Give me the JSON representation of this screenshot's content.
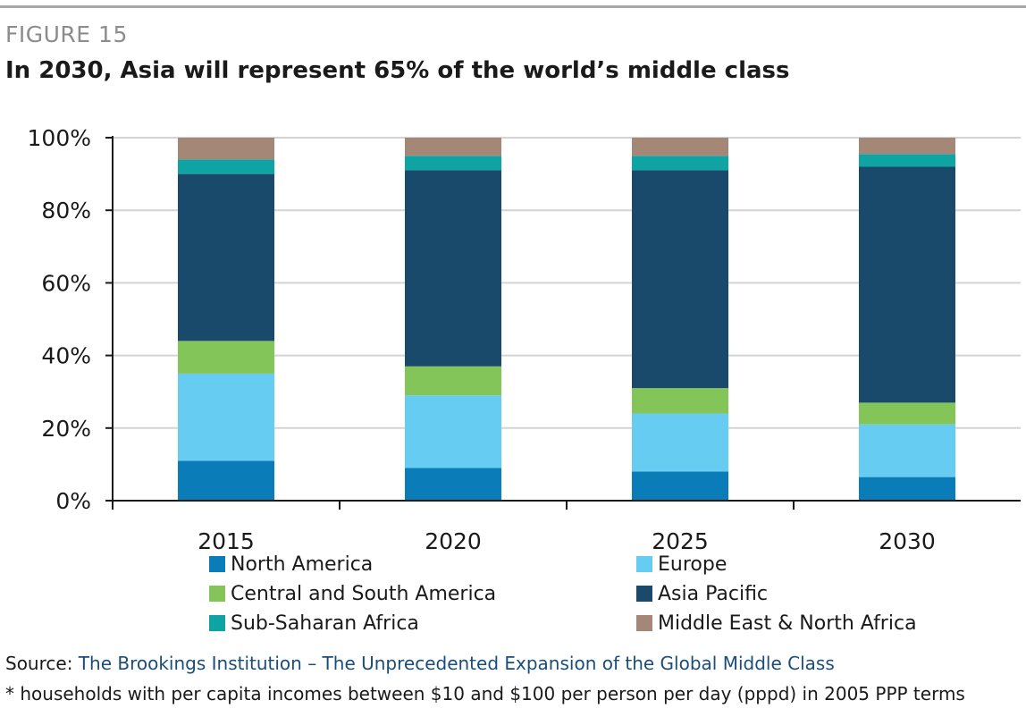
{
  "figure": {
    "label": "FIGURE 15",
    "title": "In 2030, Asia will represent 65% of the world’s middle class"
  },
  "chart_data": {
    "type": "bar",
    "stacked": true,
    "categories": [
      "2015",
      "2020",
      "2025",
      "2030"
    ],
    "ylim": [
      0,
      100
    ],
    "yticks": [
      "0%",
      "20%",
      "40%",
      "60%",
      "80%",
      "100%"
    ],
    "ytick_values": [
      0,
      20,
      40,
      60,
      80,
      100
    ],
    "grid": true,
    "legend_position": "bottom",
    "series": [
      {
        "name": "North America",
        "color": "#0a7cb8",
        "values": [
          11,
          9,
          8,
          6.5
        ]
      },
      {
        "name": "Europe",
        "color": "#66ccf2",
        "values": [
          24,
          20,
          16,
          14.5
        ]
      },
      {
        "name": "Central and South America",
        "color": "#84c55a",
        "values": [
          9,
          8,
          7,
          6
        ]
      },
      {
        "name": "Asia Pacific",
        "color": "#1a4a6b",
        "values": [
          46,
          54,
          60,
          65
        ]
      },
      {
        "name": "Sub-Saharan Africa",
        "color": "#0fa3a3",
        "values": [
          4,
          4,
          4,
          3.5
        ]
      },
      {
        "name": "Middle East & North Africa",
        "color": "#a48776",
        "values": [
          6,
          5,
          5,
          4.5
        ]
      }
    ]
  },
  "source": {
    "prefix": "Source: ",
    "link": "The Brookings Institution – The Unprecedented Expansion of the Global Middle Class"
  },
  "footnote": "* households with per capita incomes between $10 and $100 per person per day (pppd) in 2005 PPP terms"
}
